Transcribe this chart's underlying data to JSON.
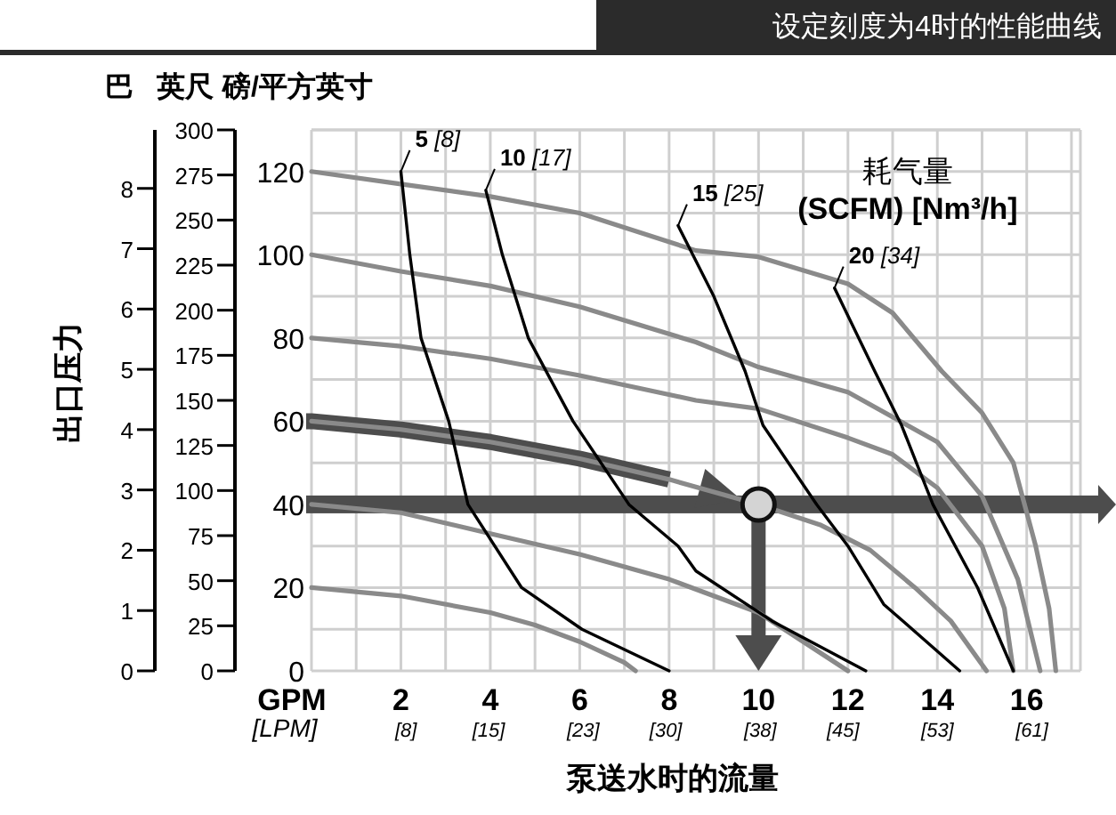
{
  "chart_data": {
    "type": "line",
    "title": "设定刻度为4时的性能曲线",
    "xlabel": "泵送水时的流量",
    "ylabel": "磅/平方英寸",
    "y2label": "英尺",
    "y3label": "巴",
    "annotations": [
      "出口压力",
      "GPM",
      "[LPM]",
      "耗气量",
      "(SCFM) [Nm³/h]"
    ],
    "xlim": [
      0,
      17.2
    ],
    "xticks": [
      2,
      4,
      6,
      8,
      10,
      12,
      14,
      16
    ],
    "x2lim": [
      0,
      65.1
    ],
    "x2ticks": [
      {
        "value": 8,
        "label": "[8]"
      },
      {
        "value": 15,
        "label": "[15]"
      },
      {
        "value": 23,
        "label": "[23]"
      },
      {
        "value": 30,
        "label": "[30]"
      },
      {
        "value": 38,
        "label": "[38]"
      },
      {
        "value": 45,
        "label": "[45]"
      },
      {
        "value": 53,
        "label": "[53]"
      },
      {
        "value": 61,
        "label": "[61]"
      }
    ],
    "ylim": [
      0,
      130
    ],
    "yticks": [
      0,
      20,
      40,
      60,
      80,
      100,
      120
    ],
    "y2lim": [
      0,
      300
    ],
    "y2ticks": [
      0,
      25,
      50,
      75,
      100,
      125,
      150,
      175,
      200,
      225,
      250,
      275,
      300
    ],
    "y3lim": [
      0,
      8.97
    ],
    "y3ticks": [
      0,
      1,
      2,
      3,
      4,
      5,
      6,
      7,
      8
    ],
    "grid": true,
    "legend": false,
    "marker": "none",
    "line_style": "solid",
    "series": [
      {
        "color": "#8a8a8a",
        "x": [
          0,
          2,
          4,
          6,
          8.6,
          10,
          12,
          13,
          14.1,
          15,
          15.7,
          16.2,
          16.5,
          16.65
        ],
        "values": [
          120,
          117,
          114,
          110,
          101,
          99.5,
          93,
          86,
          72,
          62,
          50,
          30,
          15,
          0
        ]
      },
      {
        "color": "#8a8a8a",
        "x": [
          0,
          2,
          4,
          6,
          8.6,
          10,
          12,
          14,
          15,
          15.8,
          16.3
        ],
        "values": [
          100,
          96,
          92.5,
          87.5,
          79,
          73,
          67,
          55,
          42,
          22,
          0
        ]
      },
      {
        "color": "#8a8a8a",
        "x": [
          0,
          2,
          4,
          6,
          8.6,
          10,
          12,
          13,
          14,
          15,
          15.5,
          15.7
        ],
        "values": [
          80,
          78,
          75,
          71,
          65,
          63,
          56,
          52,
          44,
          30,
          15,
          0
        ]
      },
      {
        "color": "#8a8a8a",
        "x": [
          0,
          2,
          4,
          6,
          8,
          10,
          11.4,
          12.5,
          13.5,
          14.3,
          15.1
        ],
        "values": [
          60,
          58,
          55,
          51,
          46,
          40,
          35,
          29,
          20,
          12,
          0
        ]
      },
      {
        "color": "#8a8a8a",
        "x": [
          0,
          2,
          4,
          6,
          8,
          10,
          11,
          12
        ],
        "values": [
          40,
          38,
          33,
          28,
          22,
          14,
          7,
          0
        ]
      },
      {
        "color": "#8a8a8a",
        "x": [
          0,
          2,
          4,
          5,
          6,
          7,
          7.25
        ],
        "values": [
          20,
          18,
          14,
          11,
          7,
          2,
          0
        ]
      },
      {
        "name": "5 [8]",
        "color": "#000000",
        "x": [
          2.0,
          2.2,
          2.45,
          3.07,
          3.5,
          4.7,
          6.05,
          8.0
        ],
        "values": [
          120,
          100,
          80,
          60,
          40,
          20,
          10,
          0
        ]
      },
      {
        "name": "10 [17]",
        "color": "#000000",
        "x": [
          3.9,
          4.27,
          4.85,
          5.85,
          7.1,
          8.2,
          8.6,
          10.3,
          12.4
        ],
        "values": [
          115.5,
          100,
          80,
          60,
          40,
          30,
          24,
          12,
          0
        ]
      },
      {
        "name": "15 [25]",
        "color": "#000000",
        "x": [
          8.2,
          9.0,
          9.7,
          10.1,
          11.3,
          12.0,
          12.8,
          14.5
        ],
        "values": [
          107,
          90,
          72,
          59,
          40,
          30,
          16,
          0
        ]
      },
      {
        "name": "20 [34]",
        "color": "#000000",
        "x": [
          11.7,
          12.6,
          13.2,
          13.9,
          14.9,
          15.7
        ],
        "values": [
          92,
          72,
          59,
          40,
          20,
          0
        ]
      }
    ]
  }
}
